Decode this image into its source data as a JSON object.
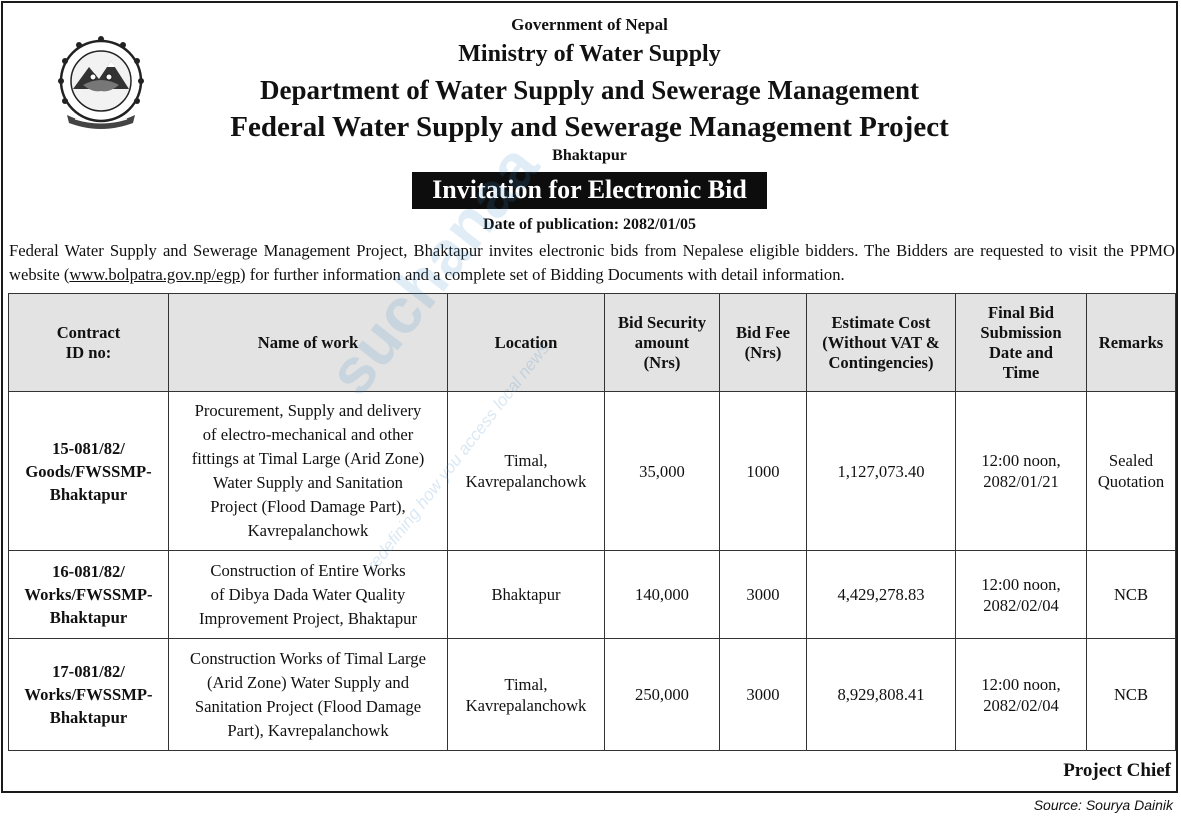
{
  "header": {
    "line1": "Government of Nepal",
    "line2": "Ministry of Water Supply",
    "line3": "Department of Water Supply and Sewerage Management",
    "line4": "Federal Water Supply and Sewerage Management Project",
    "line5": "Bhaktapur"
  },
  "banner": "Invitation for Electronic Bid",
  "publication_date": "Date of publication: 2082/01/05",
  "intro": {
    "before_url": "Federal Water Supply and Sewerage Management Project, Bhaktapur invites electronic bids from Nepalese eligible bidders. The Bidders are requested to visit the PPMO website (",
    "url": "www.bolpatra.gov.np/egp",
    "after_url": ") for further information and a complete set of Bidding Documents with detail information."
  },
  "table": {
    "headers": [
      [
        "Contract",
        "ID no:"
      ],
      [
        "Name of work"
      ],
      [
        "Location"
      ],
      [
        "Bid Security",
        "amount",
        "(Nrs)"
      ],
      [
        "Bid Fee",
        "(Nrs)"
      ],
      [
        "Estimate Cost",
        "(Without VAT &",
        "Contingencies)"
      ],
      [
        "Final Bid",
        "Submission",
        "Date and",
        "Time"
      ],
      [
        "Remarks"
      ]
    ],
    "rows": [
      {
        "contract_id": [
          "15-081/82/",
          "Goods/FWSSMP-",
          "Bhaktapur"
        ],
        "work": [
          "Procurement, Supply and delivery",
          "of electro-mechanical and other",
          "fittings at Timal Large (Arid Zone)",
          "Water Supply and Sanitation",
          "Project (Flood Damage Part),",
          "Kavrepalanchowk"
        ],
        "location": [
          "Timal,",
          "Kavrepalanchowk"
        ],
        "bid_security": "35,000",
        "bid_fee": "1000",
        "estimate": "1,127,073.40",
        "deadline": [
          "12:00 noon,",
          "2082/01/21"
        ],
        "remarks": [
          "Sealed",
          "Quotation"
        ]
      },
      {
        "contract_id": [
          "16-081/82/",
          "Works/FWSSMP-",
          "Bhaktapur"
        ],
        "work": [
          "Construction of Entire Works",
          "of Dibya Dada Water Quality",
          "Improvement Project, Bhaktapur"
        ],
        "location": [
          "Bhaktapur"
        ],
        "bid_security": "140,000",
        "bid_fee": "3000",
        "estimate": "4,429,278.83",
        "deadline": [
          "12:00 noon,",
          "2082/02/04"
        ],
        "remarks": [
          "NCB"
        ]
      },
      {
        "contract_id": [
          "17-081/82/",
          "Works/FWSSMP-",
          "Bhaktapur"
        ],
        "work": [
          "Construction Works of Timal Large",
          "(Arid Zone) Water Supply and",
          "Sanitation Project (Flood Damage",
          "Part), Kavrepalanchowk"
        ],
        "location": [
          "Timal,",
          "Kavrepalanchowk"
        ],
        "bid_security": "250,000",
        "bid_fee": "3000",
        "estimate": "8,929,808.41",
        "deadline": [
          "12:00 noon,",
          "2082/02/04"
        ],
        "remarks": [
          "NCB"
        ]
      }
    ]
  },
  "signoff": "Project Chief",
  "source": "Source: Sourya Dainik",
  "watermark": {
    "brand": "suchanaa",
    "tagline": "redefining how you access local news"
  }
}
